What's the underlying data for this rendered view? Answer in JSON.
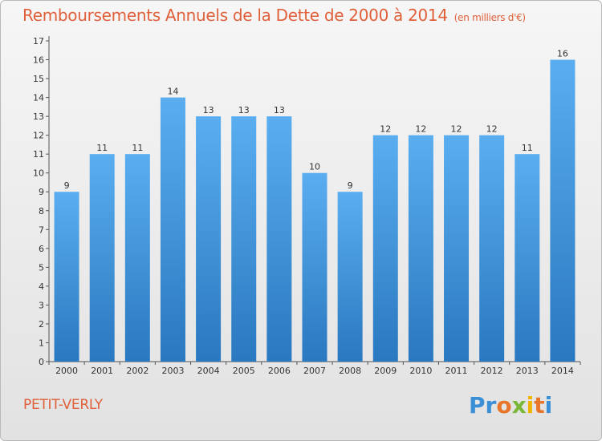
{
  "chart_data": {
    "type": "bar",
    "title": "Remboursements Annuels de la Dette de 2000 à 2014",
    "unit": "(en milliers d'€)",
    "categories": [
      "2000",
      "2001",
      "2002",
      "2003",
      "2004",
      "2005",
      "2006",
      "2007",
      "2008",
      "2009",
      "2010",
      "2011",
      "2012",
      "2013",
      "2014"
    ],
    "values": [
      9,
      11,
      11,
      14,
      13,
      13,
      13,
      10,
      9,
      12,
      12,
      12,
      12,
      11,
      16
    ],
    "xlabel": "",
    "ylabel": "",
    "ylim": [
      0,
      17
    ],
    "yticks": [
      0,
      1,
      2,
      3,
      4,
      5,
      6,
      7,
      8,
      9,
      10,
      11,
      12,
      13,
      14,
      15,
      16,
      17
    ],
    "grid": false,
    "legend": "none",
    "bar_color": "#3b8fd9"
  },
  "footer": {
    "commune": "PETIT-VERLY",
    "logo": {
      "letters": [
        "P",
        "r",
        "o",
        "x",
        "i",
        "t",
        "i"
      ],
      "colors": [
        "#3a8fd6",
        "#3a8fd6",
        "#e8752a",
        "#7ab83a",
        "#f0b400",
        "#e8752a",
        "#3a8fd6"
      ]
    }
  }
}
